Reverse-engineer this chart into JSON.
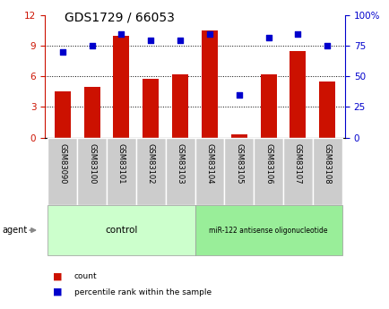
{
  "title": "GDS1729 / 66053",
  "categories": [
    "GSM83090",
    "GSM83100",
    "GSM83101",
    "GSM83102",
    "GSM83103",
    "GSM83104",
    "GSM83105",
    "GSM83106",
    "GSM83107",
    "GSM83108"
  ],
  "red_values": [
    4.5,
    5.0,
    10.0,
    5.8,
    6.2,
    10.5,
    0.3,
    6.2,
    8.5,
    5.5
  ],
  "blue_values": [
    70,
    75,
    85,
    80,
    80,
    85,
    35,
    82,
    85,
    75
  ],
  "left_ylim": [
    0,
    12
  ],
  "right_ylim": [
    0,
    100
  ],
  "left_yticks": [
    0,
    3,
    6,
    9,
    12
  ],
  "right_yticks": [
    0,
    25,
    50,
    75,
    100
  ],
  "right_yticklabels": [
    "0",
    "25",
    "50",
    "75",
    "100%"
  ],
  "bar_color": "#cc1100",
  "dot_color": "#0000cc",
  "bar_width": 0.55,
  "control_label": "control",
  "treatment_label": "miR-122 antisense oligonucleotide",
  "control_indices": [
    0,
    1,
    2,
    3,
    4
  ],
  "treatment_indices": [
    5,
    6,
    7,
    8,
    9
  ],
  "agent_label": "agent",
  "legend_count": "count",
  "legend_pct": "percentile rank within the sample",
  "control_color": "#ccffcc",
  "treatment_color": "#99ee99",
  "tick_bg_color": "#cccccc",
  "grid_color": "#000000",
  "title_fontsize": 10,
  "axis_fontsize": 7.5,
  "label_fontsize": 7,
  "cat_fontsize": 6,
  "group_fontsize": 7.5
}
